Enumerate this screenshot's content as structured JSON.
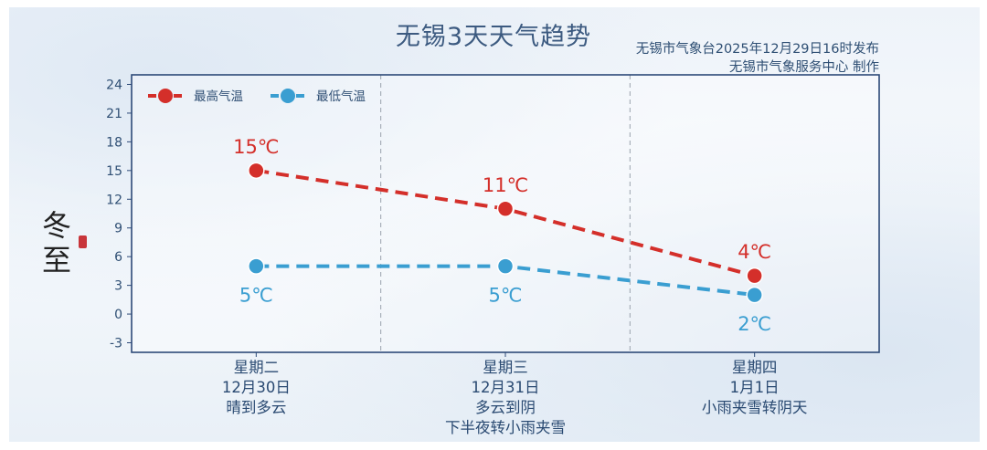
{
  "header": {
    "title": "无锡3天天气趋势",
    "issuer_line1": "无锡市气象台2025年12月29日16时发布",
    "issuer_line2": "无锡市气象服务中心  制作"
  },
  "decoration": {
    "calligraphy": [
      "冬",
      "至"
    ]
  },
  "chart_data": {
    "type": "line",
    "categories": [
      "星期二",
      "星期三",
      "星期四"
    ],
    "dates": [
      "12月30日",
      "12月31日",
      "1月1日"
    ],
    "conditions": [
      [
        "晴到多云"
      ],
      [
        "多云到阴",
        "下半夜转小雨夹雪"
      ],
      [
        "小雨夹雪转阴天"
      ]
    ],
    "series": [
      {
        "name": "最高气温",
        "values": [
          15,
          11,
          4
        ],
        "labels": [
          "15℃",
          "11℃",
          "4℃"
        ],
        "color": "#d42f2a",
        "label_position": "above"
      },
      {
        "name": "最低气温",
        "values": [
          5,
          5,
          2
        ],
        "labels": [
          "5℃",
          "5℃",
          "2℃"
        ],
        "color": "#3a9ed1",
        "label_position": "below"
      }
    ],
    "ylim": [
      -4,
      25
    ],
    "yticks": [
      -3,
      0,
      3,
      6,
      9,
      12,
      15,
      18,
      21,
      24
    ],
    "grid": "vertical dashed separators between days",
    "legend_position": "top-left",
    "line_style": "dashed"
  }
}
